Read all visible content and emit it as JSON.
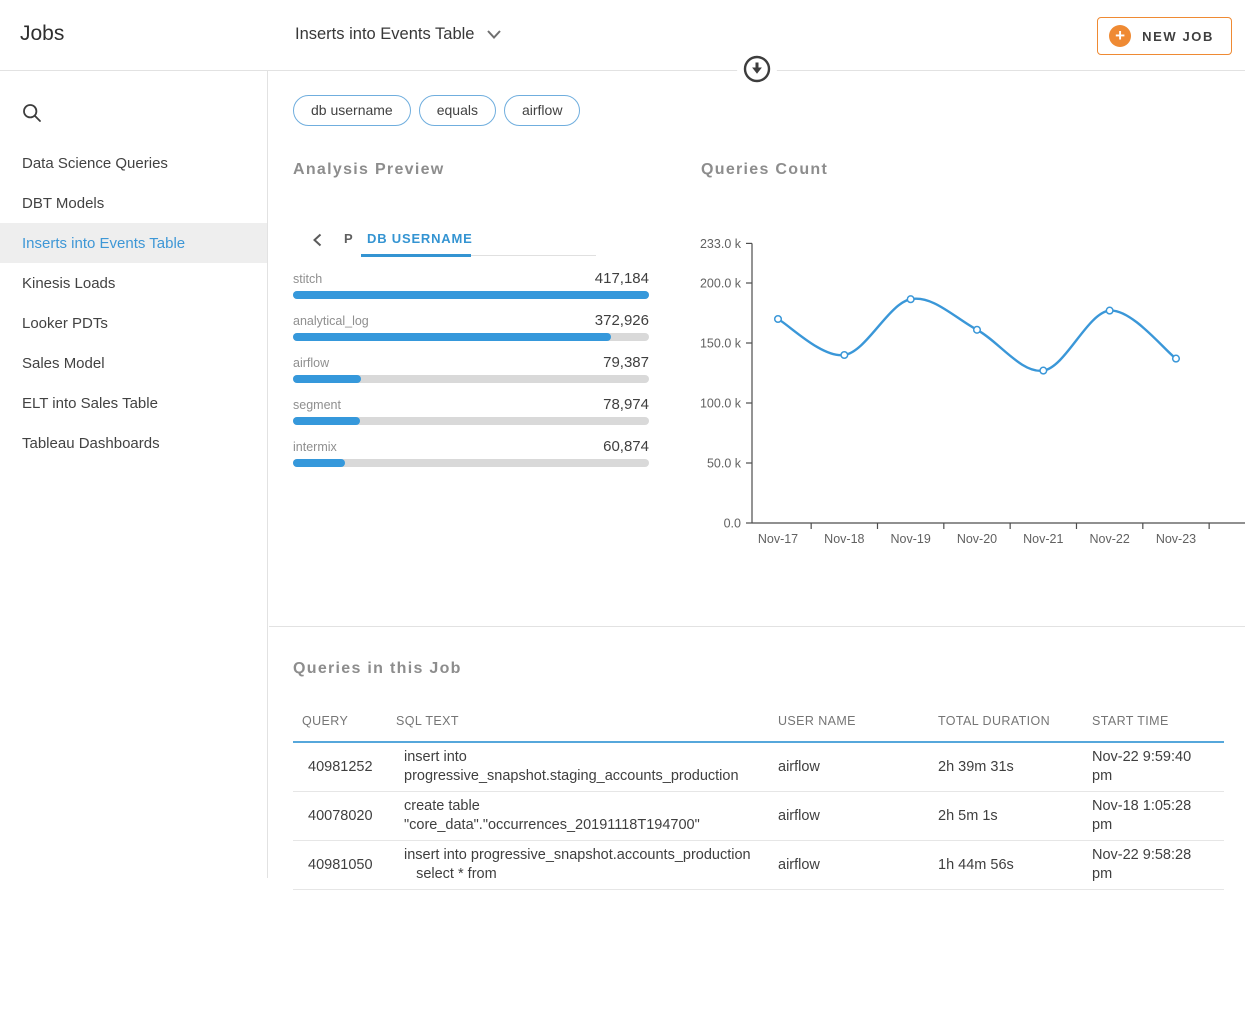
{
  "colors": {
    "accent_blue": "#3a97d8",
    "accent_orange": "#ee8a31",
    "axis_gray": "#4d4d4d",
    "label_gray": "#616161"
  },
  "topbar": {
    "title": "Jobs",
    "job_selector": "Inserts into Events Table",
    "new_job_label": "NEW JOB"
  },
  "sidebar": {
    "items": [
      {
        "label": "Data Science Queries",
        "selected": false
      },
      {
        "label": "DBT Models",
        "selected": false
      },
      {
        "label": "Inserts into Events Table",
        "selected": true
      },
      {
        "label": "Kinesis Loads",
        "selected": false
      },
      {
        "label": "Looker PDTs",
        "selected": false
      },
      {
        "label": "Sales Model",
        "selected": false
      },
      {
        "label": "ELT into Sales Table",
        "selected": false
      },
      {
        "label": "Tableau Dashboards",
        "selected": false
      }
    ]
  },
  "filters": {
    "chips": [
      "db username",
      "equals",
      "airflow"
    ]
  },
  "analysis_preview": {
    "tabs": {
      "partial": "P",
      "active": "DB USERNAME"
    }
  },
  "chart_data": [
    {
      "type": "bar",
      "orientation": "horizontal",
      "title": "Analysis Preview",
      "categories": [
        "stitch",
        "analytical_log",
        "airflow",
        "segment",
        "intermix"
      ],
      "values": [
        417184,
        372926,
        79387,
        78974,
        60874
      ],
      "value_labels": [
        "417,184",
        "372,926",
        "79,387",
        "78,974",
        "60,874"
      ],
      "xlim": [
        0,
        417184
      ],
      "grid": false
    },
    {
      "type": "line",
      "title": "Queries Count",
      "x": [
        "Nov-17",
        "Nov-18",
        "Nov-19",
        "Nov-20",
        "Nov-21",
        "Nov-22",
        "Nov-23"
      ],
      "values": [
        170000,
        140000,
        186500,
        161000,
        127000,
        177000,
        137000
      ],
      "ylim": [
        0,
        233000
      ],
      "yticks": [
        0,
        50000,
        100000,
        150000,
        200000,
        233000
      ],
      "ytick_labels": [
        "0.0",
        "50.0 k",
        "100.0 k",
        "150.0 k",
        "200.0 k",
        "233.0 k"
      ],
      "smooth": true,
      "marker": "open-circle",
      "grid": false,
      "legend": "none"
    }
  ],
  "job_queries": {
    "title": "Queries in this Job",
    "columns": [
      "QUERY",
      "SQL TEXT",
      "USER NAME",
      "TOTAL DURATION",
      "START TIME"
    ],
    "rows": [
      {
        "query": "40981252",
        "sql_lines": [
          "insert into",
          "progressive_snapshot.staging_accounts_production"
        ],
        "user": "airflow",
        "duration": "2h 39m 31s",
        "start_lines": [
          "Nov-22 9:59:40",
          "pm"
        ]
      },
      {
        "query": "40078020",
        "sql_lines": [
          "create table",
          "\"core_data\".\"occurrences_20191118T194700\""
        ],
        "user": "airflow",
        "duration": "2h 5m 1s",
        "start_lines": [
          "Nov-18 1:05:28",
          "pm"
        ]
      },
      {
        "query": "40981050",
        "sql_lines": [
          "insert into progressive_snapshot.accounts_production",
          "   select * from"
        ],
        "user": "airflow",
        "duration": "1h 44m 56s",
        "start_lines": [
          "Nov-22 9:58:28",
          "pm"
        ]
      }
    ]
  }
}
